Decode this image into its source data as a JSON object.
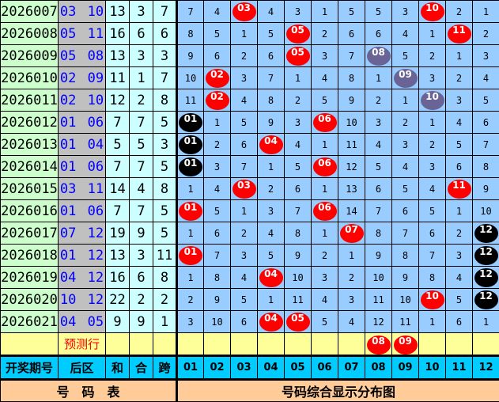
{
  "rows": [
    {
      "issue": "2026007",
      "back": "03 10",
      "sum": "13",
      "he": "3",
      "span": "7",
      "cells": [
        {
          "v": "7"
        },
        {
          "v": "4"
        },
        {
          "v": "03",
          "c": "r"
        },
        {
          "v": "4"
        },
        {
          "v": "3"
        },
        {
          "v": "1"
        },
        {
          "v": "5"
        },
        {
          "v": "5"
        },
        {
          "v": "3"
        },
        {
          "v": "10",
          "c": "r"
        },
        {
          "v": "2"
        },
        {
          "v": "1"
        }
      ]
    },
    {
      "issue": "2026008",
      "back": "05 11",
      "sum": "16",
      "he": "6",
      "span": "6",
      "cells": [
        {
          "v": "8"
        },
        {
          "v": "5"
        },
        {
          "v": "1"
        },
        {
          "v": "5"
        },
        {
          "v": "05",
          "c": "r"
        },
        {
          "v": "2"
        },
        {
          "v": "6"
        },
        {
          "v": "6"
        },
        {
          "v": "4"
        },
        {
          "v": "1"
        },
        {
          "v": "11",
          "c": "r"
        },
        {
          "v": "2"
        }
      ]
    },
    {
      "issue": "2026009",
      "back": "05 08",
      "sum": "13",
      "he": "3",
      "span": "3",
      "cells": [
        {
          "v": "9"
        },
        {
          "v": "6"
        },
        {
          "v": "2"
        },
        {
          "v": "6"
        },
        {
          "v": "05",
          "c": "r"
        },
        {
          "v": "3"
        },
        {
          "v": "7"
        },
        {
          "v": "08",
          "c": "g"
        },
        {
          "v": "5"
        },
        {
          "v": "2"
        },
        {
          "v": "1"
        },
        {
          "v": "3"
        }
      ]
    },
    {
      "issue": "2026010",
      "back": "02 09",
      "sum": "11",
      "he": "1",
      "span": "7",
      "cells": [
        {
          "v": "10"
        },
        {
          "v": "02",
          "c": "r"
        },
        {
          "v": "3"
        },
        {
          "v": "7"
        },
        {
          "v": "1"
        },
        {
          "v": "4"
        },
        {
          "v": "8"
        },
        {
          "v": "1"
        },
        {
          "v": "09",
          "c": "g"
        },
        {
          "v": "3"
        },
        {
          "v": "2"
        },
        {
          "v": "4"
        }
      ]
    },
    {
      "issue": "2026011",
      "back": "02 10",
      "sum": "12",
      "he": "2",
      "span": "8",
      "cells": [
        {
          "v": "11"
        },
        {
          "v": "02",
          "c": "r"
        },
        {
          "v": "4"
        },
        {
          "v": "8"
        },
        {
          "v": "2"
        },
        {
          "v": "5"
        },
        {
          "v": "9"
        },
        {
          "v": "2"
        },
        {
          "v": "1"
        },
        {
          "v": "10",
          "c": "g"
        },
        {
          "v": "3"
        },
        {
          "v": "5"
        }
      ]
    },
    {
      "issue": "2026012",
      "back": "01 06",
      "sum": "7",
      "he": "7",
      "span": "5",
      "cells": [
        {
          "v": "01",
          "c": "k"
        },
        {
          "v": "1"
        },
        {
          "v": "5"
        },
        {
          "v": "9"
        },
        {
          "v": "3"
        },
        {
          "v": "06",
          "c": "r"
        },
        {
          "v": "10"
        },
        {
          "v": "3"
        },
        {
          "v": "2"
        },
        {
          "v": "1"
        },
        {
          "v": "4"
        },
        {
          "v": "6"
        }
      ]
    },
    {
      "issue": "2026013",
      "back": "01 04",
      "sum": "5",
      "he": "5",
      "span": "3",
      "cells": [
        {
          "v": "01",
          "c": "k"
        },
        {
          "v": "2"
        },
        {
          "v": "6"
        },
        {
          "v": "04",
          "c": "r"
        },
        {
          "v": "4"
        },
        {
          "v": "1"
        },
        {
          "v": "11"
        },
        {
          "v": "4"
        },
        {
          "v": "3"
        },
        {
          "v": "2"
        },
        {
          "v": "5"
        },
        {
          "v": "7"
        }
      ]
    },
    {
      "issue": "2026014",
      "back": "01 06",
      "sum": "7",
      "he": "7",
      "span": "5",
      "cells": [
        {
          "v": "01",
          "c": "k"
        },
        {
          "v": "3"
        },
        {
          "v": "7"
        },
        {
          "v": "1"
        },
        {
          "v": "5"
        },
        {
          "v": "06",
          "c": "r"
        },
        {
          "v": "12"
        },
        {
          "v": "5"
        },
        {
          "v": "4"
        },
        {
          "v": "3"
        },
        {
          "v": "6"
        },
        {
          "v": "8"
        }
      ]
    },
    {
      "issue": "2026015",
      "back": "03 11",
      "sum": "14",
      "he": "4",
      "span": "8",
      "cells": [
        {
          "v": "1"
        },
        {
          "v": "4"
        },
        {
          "v": "03",
          "c": "r"
        },
        {
          "v": "2"
        },
        {
          "v": "6"
        },
        {
          "v": "1"
        },
        {
          "v": "13"
        },
        {
          "v": "6"
        },
        {
          "v": "5"
        },
        {
          "v": "4"
        },
        {
          "v": "11",
          "c": "r"
        },
        {
          "v": "9"
        }
      ]
    },
    {
      "issue": "2026016",
      "back": "01 06",
      "sum": "7",
      "he": "7",
      "span": "5",
      "cells": [
        {
          "v": "01",
          "c": "r"
        },
        {
          "v": "5"
        },
        {
          "v": "1"
        },
        {
          "v": "3"
        },
        {
          "v": "7"
        },
        {
          "v": "06",
          "c": "r"
        },
        {
          "v": "14"
        },
        {
          "v": "7"
        },
        {
          "v": "6"
        },
        {
          "v": "5"
        },
        {
          "v": "1"
        },
        {
          "v": "10"
        }
      ]
    },
    {
      "issue": "2026017",
      "back": "07 12",
      "sum": "19",
      "he": "9",
      "span": "5",
      "cells": [
        {
          "v": "1"
        },
        {
          "v": "6"
        },
        {
          "v": "2"
        },
        {
          "v": "4"
        },
        {
          "v": "8"
        },
        {
          "v": "1"
        },
        {
          "v": "07",
          "c": "r"
        },
        {
          "v": "8"
        },
        {
          "v": "7"
        },
        {
          "v": "6"
        },
        {
          "v": "2"
        },
        {
          "v": "12",
          "c": "k"
        }
      ]
    },
    {
      "issue": "2026018",
      "back": "01 12",
      "sum": "13",
      "he": "3",
      "span": "11",
      "cells": [
        {
          "v": "01",
          "c": "r"
        },
        {
          "v": "7"
        },
        {
          "v": "3"
        },
        {
          "v": "5"
        },
        {
          "v": "9"
        },
        {
          "v": "2"
        },
        {
          "v": "1"
        },
        {
          "v": "9"
        },
        {
          "v": "8"
        },
        {
          "v": "7"
        },
        {
          "v": "3"
        },
        {
          "v": "12",
          "c": "k"
        }
      ]
    },
    {
      "issue": "2026019",
      "back": "04 12",
      "sum": "16",
      "he": "6",
      "span": "8",
      "cells": [
        {
          "v": "1"
        },
        {
          "v": "8"
        },
        {
          "v": "4"
        },
        {
          "v": "04",
          "c": "r"
        },
        {
          "v": "10"
        },
        {
          "v": "3"
        },
        {
          "v": "2"
        },
        {
          "v": "10"
        },
        {
          "v": "9"
        },
        {
          "v": "8"
        },
        {
          "v": "4"
        },
        {
          "v": "12",
          "c": "k"
        }
      ]
    },
    {
      "issue": "2026020",
      "back": "10 12",
      "sum": "22",
      "he": "2",
      "span": "2",
      "cells": [
        {
          "v": "2"
        },
        {
          "v": "9"
        },
        {
          "v": "5"
        },
        {
          "v": "1"
        },
        {
          "v": "11"
        },
        {
          "v": "4"
        },
        {
          "v": "3"
        },
        {
          "v": "11"
        },
        {
          "v": "10"
        },
        {
          "v": "10",
          "c": "r"
        },
        {
          "v": "5"
        },
        {
          "v": "12",
          "c": "k"
        }
      ]
    },
    {
      "issue": "2026021",
      "back": "04 05",
      "sum": "9",
      "he": "9",
      "span": "1",
      "cells": [
        {
          "v": "3"
        },
        {
          "v": "10"
        },
        {
          "v": "6"
        },
        {
          "v": "04",
          "c": "r"
        },
        {
          "v": "05",
          "c": "r"
        },
        {
          "v": "5"
        },
        {
          "v": "4"
        },
        {
          "v": "12"
        },
        {
          "v": "11"
        },
        {
          "v": "1"
        },
        {
          "v": "6"
        },
        {
          "v": "1"
        }
      ]
    }
  ],
  "prediction": {
    "label": "预测行",
    "cells": [
      {
        "v": ""
      },
      {
        "v": ""
      },
      {
        "v": ""
      },
      {
        "v": ""
      },
      {
        "v": ""
      },
      {
        "v": ""
      },
      {
        "v": ""
      },
      {
        "v": "08",
        "c": "r"
      },
      {
        "v": "09",
        "c": "r"
      },
      {
        "v": ""
      },
      {
        "v": ""
      },
      {
        "v": ""
      }
    ]
  },
  "header": {
    "issue": "开奖期号",
    "back": "后区",
    "sum": "和",
    "he": "合",
    "span": "跨",
    "numbers": [
      "01",
      "02",
      "03",
      "04",
      "05",
      "06",
      "07",
      "08",
      "09",
      "10",
      "11",
      "12"
    ]
  },
  "footer": {
    "left": "号　码　表",
    "right": "号码综合显示分布图"
  },
  "colors": {
    "red_ball": "#ff0000",
    "black_ball": "#000000",
    "repeat_ball": "#6a6496",
    "grid_bg": "#99ccff",
    "issue_bg": "#ccffcc",
    "back_bg": "#c0c0c0",
    "header_bg": "#00ccff",
    "footer_bg": "#ffcc99",
    "prediction_bg": "#ffff99",
    "back_text": "#0000ff"
  },
  "ball_types": {
    "r": "red-ball-icon",
    "k": "black-ball-icon",
    "g": "repeat-ball-icon"
  }
}
